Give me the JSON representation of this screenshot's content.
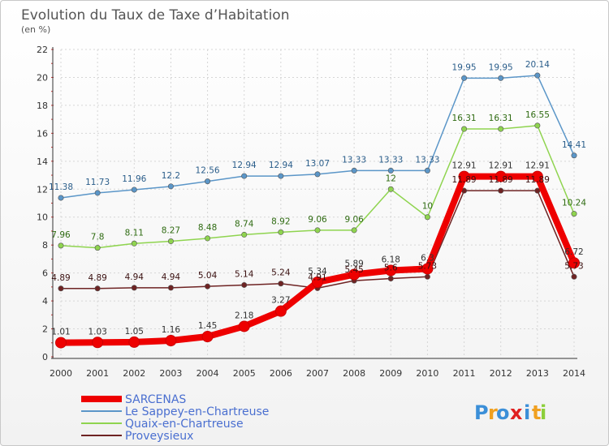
{
  "chart_data": {
    "type": "line",
    "title": "Evolution du Taux de Taxe d’Habitation",
    "subtitle": "(en %)",
    "x": [
      "2000",
      "2001",
      "2002",
      "2003",
      "2004",
      "2005",
      "2006",
      "2007",
      "2008",
      "2009",
      "2010",
      "2011",
      "2012",
      "2013",
      "2014"
    ],
    "ylim": [
      0,
      22
    ],
    "yticks": [
      0,
      2,
      4,
      6,
      8,
      10,
      12,
      14,
      16,
      18,
      20,
      22
    ],
    "grid": true,
    "legend_position": "bottom-left",
    "series": [
      {
        "name": "SARCENAS",
        "color": "#ee0000",
        "values": [
          1.01,
          1.03,
          1.05,
          1.16,
          1.45,
          2.18,
          3.27,
          5.34,
          5.89,
          6.18,
          6.3,
          12.91,
          12.91,
          12.91,
          6.72
        ],
        "labels": [
          "1.01",
          "1.03",
          "1.05",
          "1.16",
          "1.45",
          "2.18",
          "3.27",
          "5.34",
          "5.89",
          "6.18",
          "6.3",
          "12.91",
          "12.91",
          "12.91",
          "6.72"
        ]
      },
      {
        "name": "Le Sappey-en-Chartreuse",
        "color": "#5b96c8",
        "values": [
          11.38,
          11.73,
          11.96,
          12.2,
          12.56,
          12.94,
          12.94,
          13.07,
          13.33,
          13.33,
          13.33,
          19.95,
          19.95,
          20.14,
          14.41
        ],
        "labels": [
          "11.38",
          "11.73",
          "11.96",
          "12.2",
          "12.56",
          "12.94",
          "12.94",
          "13.07",
          "13.33",
          "13.33",
          "13.33",
          "19.95",
          "19.95",
          "20.14",
          "14.41"
        ]
      },
      {
        "name": "Quaix-en-Chartreuse",
        "color": "#8fd44f",
        "values": [
          7.96,
          7.8,
          8.11,
          8.27,
          8.48,
          8.74,
          8.92,
          9.06,
          9.06,
          12,
          10,
          16.31,
          16.31,
          16.55,
          10.24
        ],
        "labels": [
          "7.96",
          "7.8",
          "8.11",
          "8.27",
          "8.48",
          "8.74",
          "8.92",
          "9.06",
          "9.06",
          "12",
          "10",
          "16.31",
          "16.31",
          "16.55",
          "10.24"
        ]
      },
      {
        "name": "Proveysieux",
        "color": "#6e2323",
        "values": [
          4.89,
          4.89,
          4.94,
          4.94,
          5.04,
          5.14,
          5.24,
          4.91,
          5.45,
          5.6,
          5.73,
          11.89,
          11.89,
          11.89,
          5.73
        ],
        "labels": [
          "4.89",
          "4.89",
          "4.94",
          "4.94",
          "5.04",
          "5.14",
          "5.24",
          "4.91",
          "5.45",
          "5.6",
          "5.73",
          "11.89",
          "11.89",
          "11.89",
          "5.73"
        ]
      }
    ]
  },
  "logo": {
    "letters": [
      "P",
      "r",
      "o",
      "x",
      "i",
      "t",
      "i"
    ],
    "colors": [
      "#3b8fd8",
      "#f0a020",
      "#3b8fd8",
      "#e02020",
      "#3b8fd8",
      "#f0a020",
      "#8ccf3a"
    ]
  }
}
